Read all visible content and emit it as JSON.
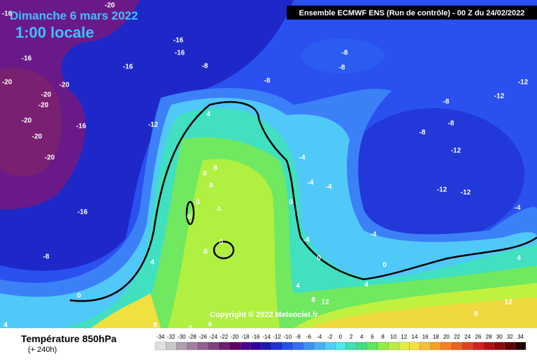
{
  "header": {
    "date": "Dimanche 6 mars 2022",
    "time": "1:00 locale",
    "model": "Ensemble ECMWF ENS  (Run de contrôle)  -  00 Z du 24/02/2022"
  },
  "copyright": "Copyright © 2022 Meteociel.fr",
  "legend": {
    "title": "Température 850hPa",
    "subtitle": "(+ 240h)",
    "ticks": [
      -34,
      -32,
      -30,
      -28,
      -26,
      -24,
      -22,
      -20,
      -18,
      -16,
      -14,
      -12,
      -10,
      -8,
      -6,
      -4,
      -2,
      0,
      2,
      4,
      6,
      8,
      10,
      12,
      14,
      16,
      18,
      20,
      22,
      24,
      26,
      28,
      30,
      32,
      34
    ],
    "colors": [
      "#e0e0e0",
      "#c8c8c8",
      "#b0a0b0",
      "#a080a0",
      "#906090",
      "#804080",
      "#702070",
      "#600060",
      "#500090",
      "#3000a0",
      "#1a1ab0",
      "#1e30d8",
      "#2050f0",
      "#3070f8",
      "#3c90f8",
      "#48b0f8",
      "#50d0f8",
      "#50e8e8",
      "#40e0b0",
      "#40e080",
      "#60e860",
      "#90f040",
      "#b8f040",
      "#e0f040",
      "#f8e040",
      "#f8c030",
      "#f8a020",
      "#f88020",
      "#f06020",
      "#e04020",
      "#d02020",
      "#b01010",
      "#900808",
      "#600000",
      "#200000"
    ]
  },
  "contour_labels": [
    "-16",
    "-20",
    "-16",
    "-16",
    "-16",
    "-16",
    "-8",
    "-8",
    "-8",
    "-20",
    "-20",
    "-20",
    "-20",
    "-16",
    "-12",
    "-20",
    "-20",
    "-20",
    "-8",
    "-12",
    "-8",
    "-8",
    "-8",
    "-12",
    "4",
    "8",
    "8",
    "8",
    "0",
    "4",
    "0",
    "0",
    "0",
    "-4",
    "-4",
    "-4",
    "0",
    "-12",
    "-12",
    "-4",
    "-4",
    "-16",
    "-8",
    "4",
    "-4",
    "0",
    "0",
    "4",
    "0",
    "4",
    "8",
    "8",
    "4",
    "4",
    "12",
    "8",
    "4",
    "12",
    "-12",
    "4"
  ]
}
